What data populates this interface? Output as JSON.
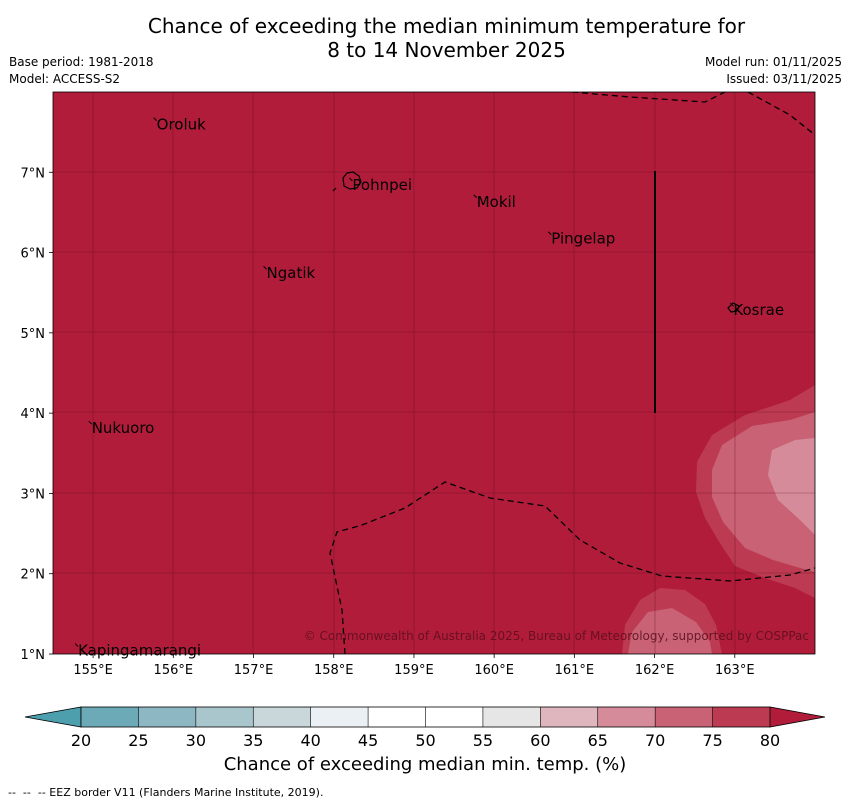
{
  "header": {
    "title_line1": "Chance of exceeding the median minimum temperature for",
    "title_line2": "8 to 14 November 2025",
    "base_period": "Base period: 1981-2018",
    "model": "Model: ACCESS-S2",
    "model_run": "Model run: 01/11/2025",
    "issued": "Issued: 03/11/2025"
  },
  "map": {
    "lon_range": [
      154.5,
      164.0
    ],
    "lat_range": [
      1.0,
      8.0
    ],
    "fill_color": "#b11c3a",
    "lat_ticks": [
      "7°N",
      "6°N",
      "5°N",
      "4°N",
      "3°N",
      "2°N",
      "1°N"
    ],
    "lon_ticks": [
      "155°E",
      "156°E",
      "157°E",
      "158°E",
      "159°E",
      "160°E",
      "161°E",
      "162°E",
      "163°E"
    ],
    "places": [
      {
        "name": "Oroluk",
        "lon": 155.78,
        "lat": 7.63
      },
      {
        "name": "Pohnpei",
        "lon": 158.22,
        "lat": 6.88
      },
      {
        "name": "Mokil",
        "lon": 159.77,
        "lat": 6.67
      },
      {
        "name": "Pingelap",
        "lon": 160.7,
        "lat": 6.21
      },
      {
        "name": "Ngatik",
        "lon": 157.15,
        "lat": 5.78
      },
      {
        "name": "Kosrae",
        "lon": 162.97,
        "lat": 5.32
      },
      {
        "name": "Nukuoro",
        "lon": 154.97,
        "lat": 3.85
      },
      {
        "name": "Kapingamarangi",
        "lon": 154.8,
        "lat": 1.08
      }
    ],
    "copyright": "© Commonwealth of Australia 2025, Bureau of Meteorology, supported by COSPPac"
  },
  "colorbar": {
    "ticks": [
      "20",
      "25",
      "30",
      "35",
      "40",
      "45",
      "50",
      "55",
      "60",
      "65",
      "70",
      "75",
      "80"
    ],
    "colors": [
      "#6daab8",
      "#8db8c3",
      "#a9c6cc",
      "#c9d7db",
      "#eaf0f3",
      "#ffffff",
      "#ffffff",
      "#e6e6e6",
      "#dfb6be",
      "#d58b99",
      "#c86274",
      "#bc3a52"
    ],
    "under_color": "#4d9fae",
    "over_color": "#b11c3a",
    "label": "Chance of exceeding median min. temp. (%)"
  },
  "footer": "--  --  -- EEZ border V11 (Flanders Marine Institute, 2019)."
}
